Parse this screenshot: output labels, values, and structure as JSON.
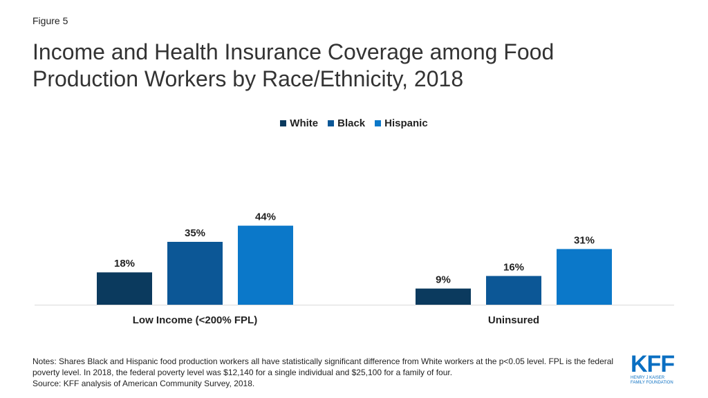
{
  "figure_label": "Figure 5",
  "chart_data": {
    "type": "bar",
    "title": "Income and Health Insurance Coverage among Food Production Workers by Race/Ethnicity, 2018",
    "categories": [
      "Low Income (<200% FPL)",
      "Uninsured"
    ],
    "series": [
      {
        "name": "White",
        "values": [
          18,
          9
        ],
        "labels": [
          "18%",
          "9%"
        ],
        "color": "#0b3a5e"
      },
      {
        "name": "Black",
        "values": [
          35,
          16
        ],
        "labels": [
          "35%",
          "16%"
        ],
        "color": "#0c5796"
      },
      {
        "name": "Hispanic",
        "values": [
          44,
          31
        ],
        "labels": [
          "44%",
          "31%"
        ],
        "color": "#0b78c9"
      }
    ],
    "unit": "%",
    "ylim": [
      0,
      50
    ],
    "legend_position": "top-center",
    "grid": false
  },
  "notes": {
    "notes_text": "Notes: Shares Black and Hispanic food production workers all have statistically significant difference from White workers at the p<0.05 level. FPL is the federal poverty level. In 2018, the federal poverty level was $12,140 for a single individual and $25,100 for a family of four.",
    "source_text": "Source: KFF analysis of American Community Survey, 2018."
  },
  "logo": {
    "mark": "KFF",
    "subtitle_line1": "HENRY J KAISER",
    "subtitle_line2": "FAMILY FOUNDATION"
  }
}
